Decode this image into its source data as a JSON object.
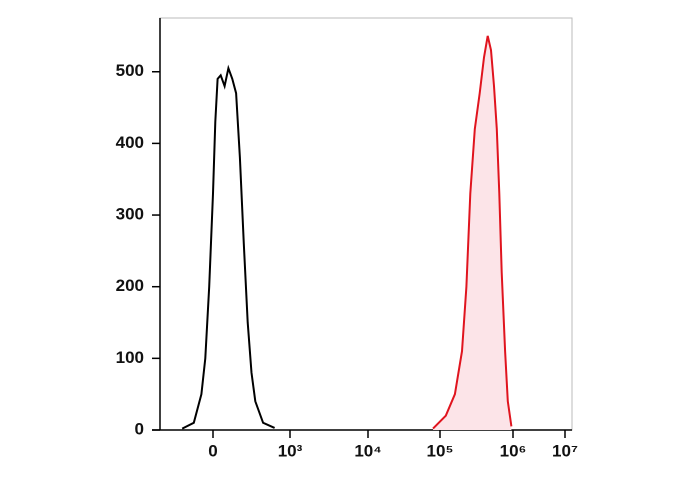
{
  "chart_data": {
    "type": "line",
    "xlim": [
      -700,
      13000000
    ],
    "xticks": [
      0,
      {
        "value": 1000,
        "label": "10³"
      },
      {
        "value": 10000,
        "label": "10⁴"
      },
      {
        "value": 100000,
        "label": "10⁵"
      },
      {
        "value": 1000000,
        "label": "10⁶"
      },
      {
        "value": 10000000,
        "label": "10⁷"
      }
    ],
    "ylim": [
      0,
      575
    ],
    "yticks": [
      0,
      100,
      200,
      300,
      400,
      500
    ],
    "series": [
      {
        "color": "#000000",
        "x": [
          -400,
          -250,
          -150,
          -100,
          -50,
          0,
          30,
          60,
          100,
          150,
          200,
          250,
          300,
          350,
          400,
          450,
          500,
          550,
          650,
          800
        ],
        "values": [
          2,
          10,
          50,
          100,
          200,
          330,
          430,
          490,
          495,
          480,
          505,
          490,
          470,
          380,
          260,
          150,
          80,
          40,
          10,
          3
        ]
      },
      {
        "color": "#e0141e",
        "fill": "#fce4e8",
        "x": [
          80000,
          120000,
          160000,
          200000,
          230000,
          260000,
          300000,
          350000,
          400000,
          450000,
          500000,
          550000,
          600000,
          650000,
          700000,
          780000,
          850000,
          950000
        ],
        "values": [
          2,
          20,
          50,
          110,
          200,
          330,
          420,
          470,
          520,
          550,
          530,
          480,
          420,
          330,
          220,
          110,
          40,
          5
        ]
      }
    ]
  }
}
